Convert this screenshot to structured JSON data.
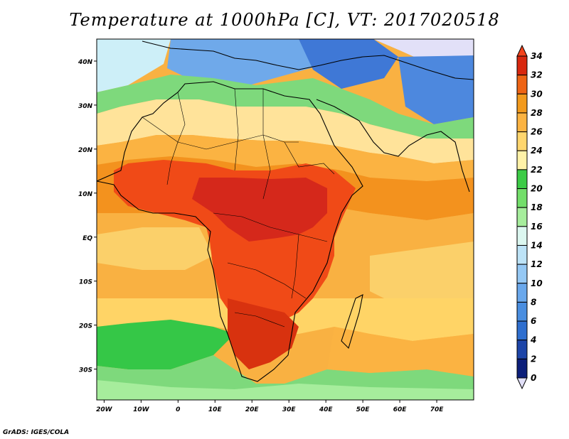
{
  "title": "Temperature at 1000hPa [C], VT: 2017020518",
  "credit": "GrADS: IGES/COLA",
  "map": {
    "lon_range": [
      -22,
      80
    ],
    "lat_range": [
      -37,
      45
    ],
    "lat_ticks": [
      {
        "value": 40,
        "label": "40N"
      },
      {
        "value": 30,
        "label": "30N"
      },
      {
        "value": 20,
        "label": "20N"
      },
      {
        "value": 10,
        "label": "10N"
      },
      {
        "value": 0,
        "label": "EQ"
      },
      {
        "value": -10,
        "label": "10S"
      },
      {
        "value": -20,
        "label": "20S"
      },
      {
        "value": -30,
        "label": "30S"
      }
    ],
    "lon_ticks": [
      {
        "value": -20,
        "label": "20W"
      },
      {
        "value": -10,
        "label": "10W"
      },
      {
        "value": 0,
        "label": "0"
      },
      {
        "value": 10,
        "label": "10E"
      },
      {
        "value": 20,
        "label": "20E"
      },
      {
        "value": 30,
        "label": "30E"
      },
      {
        "value": 40,
        "label": "40E"
      },
      {
        "value": 50,
        "label": "50E"
      },
      {
        "value": 60,
        "label": "60E"
      },
      {
        "value": 70,
        "label": "70E"
      }
    ]
  },
  "colorbar": {
    "levels": [
      "34",
      "32",
      "30",
      "28",
      "26",
      "24",
      "22",
      "20",
      "18",
      "16",
      "14",
      "12",
      "10",
      "8",
      "6",
      "4",
      "2",
      "0"
    ],
    "colors": [
      "#e2e0f8",
      "#0c1f7a",
      "#1d45a8",
      "#2f6fcf",
      "#4a8ee0",
      "#6aa8ec",
      "#95c8f4",
      "#bde3f7",
      "#dcf7f0",
      "#a6ed9c",
      "#73de6a",
      "#3ccb46",
      "#fff2a8",
      "#ffd66e",
      "#fbb342",
      "#f29a1d",
      "#ee6415",
      "#d8280f",
      "#f3431c"
    ]
  }
}
